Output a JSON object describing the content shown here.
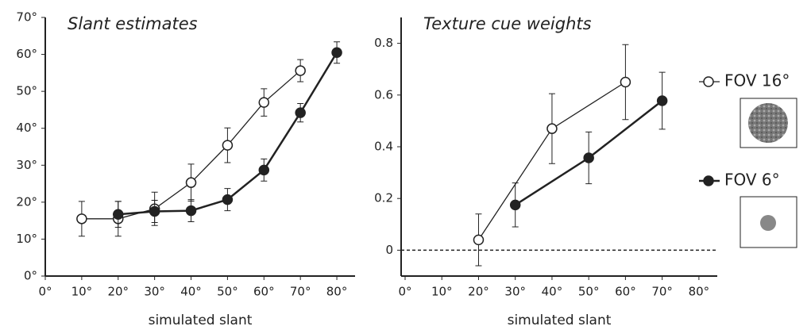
{
  "chart_data": [
    {
      "type": "line",
      "title": "Slant estimates",
      "x_label": "simulated slant",
      "xlim": [
        0,
        85
      ],
      "ylim": [
        0,
        70
      ],
      "xticks": [
        {
          "value": 0,
          "label": "0°"
        },
        {
          "value": 10,
          "label": "10°"
        },
        {
          "value": 20,
          "label": "20°"
        },
        {
          "value": 30,
          "label": "30°"
        },
        {
          "value": 40,
          "label": "40°"
        },
        {
          "value": 50,
          "label": "50°"
        },
        {
          "value": 60,
          "label": "60°"
        },
        {
          "value": 70,
          "label": "70°"
        },
        {
          "value": 80,
          "label": "80°"
        }
      ],
      "yticks": [
        {
          "value": 0,
          "label": "0°"
        },
        {
          "value": 10,
          "label": "10°"
        },
        {
          "value": 20,
          "label": "20°"
        },
        {
          "value": 30,
          "label": "30°"
        },
        {
          "value": 40,
          "label": "40°"
        },
        {
          "value": 50,
          "label": "50°"
        },
        {
          "value": 60,
          "label": "60°"
        },
        {
          "value": 70,
          "label": "70°"
        }
      ],
      "series": [
        {
          "color": "#222222",
          "marker_fill": "#ffffff",
          "x": [
            10,
            20,
            30,
            40,
            50,
            60,
            70
          ],
          "values": [
            15.5,
            15.5,
            18.2,
            25.3,
            35.4,
            47,
            55.6
          ],
          "errors": [
            4.7,
            4.7,
            4.5,
            5,
            4.7,
            3.7,
            3
          ]
        },
        {
          "color": "#222222",
          "marker_fill": "#222222",
          "x": [
            20,
            30,
            40,
            50,
            60,
            70,
            80
          ],
          "values": [
            16.7,
            17.5,
            17.7,
            20.7,
            28.7,
            44.2,
            60.5
          ],
          "errors": [
            3.5,
            3,
            3,
            3,
            3,
            2.5,
            2.9
          ]
        }
      ]
    },
    {
      "type": "line",
      "title": "Texture cue weights",
      "x_label": "simulated slant",
      "xlim": [
        0,
        85
      ],
      "ylim": [
        -0.1,
        0.9
      ],
      "zero_line": true,
      "xticks": [
        {
          "value": 0,
          "label": "0°"
        },
        {
          "value": 10,
          "label": "10°"
        },
        {
          "value": 20,
          "label": "20°"
        },
        {
          "value": 30,
          "label": "30°"
        },
        {
          "value": 40,
          "label": "40°"
        },
        {
          "value": 50,
          "label": "50°"
        },
        {
          "value": 60,
          "label": "60°"
        },
        {
          "value": 70,
          "label": "70°"
        },
        {
          "value": 80,
          "label": "80°"
        }
      ],
      "yticks": [
        0,
        0.2,
        0.4,
        0.6,
        0.8
      ],
      "series": [
        {
          "name": "FOV 16°",
          "color": "#222222",
          "marker_fill": "#ffffff",
          "x": [
            20,
            40,
            60
          ],
          "values": [
            0.04,
            0.47,
            0.65
          ],
          "errors": [
            0.1,
            0.135,
            0.145
          ]
        },
        {
          "name": "FOV 6°",
          "color": "#222222",
          "marker_fill": "#222222",
          "x": [
            30,
            50,
            70
          ],
          "values": [
            0.175,
            0.357,
            0.578
          ],
          "errors": [
            0.085,
            0.1,
            0.11
          ]
        }
      ]
    }
  ]
}
